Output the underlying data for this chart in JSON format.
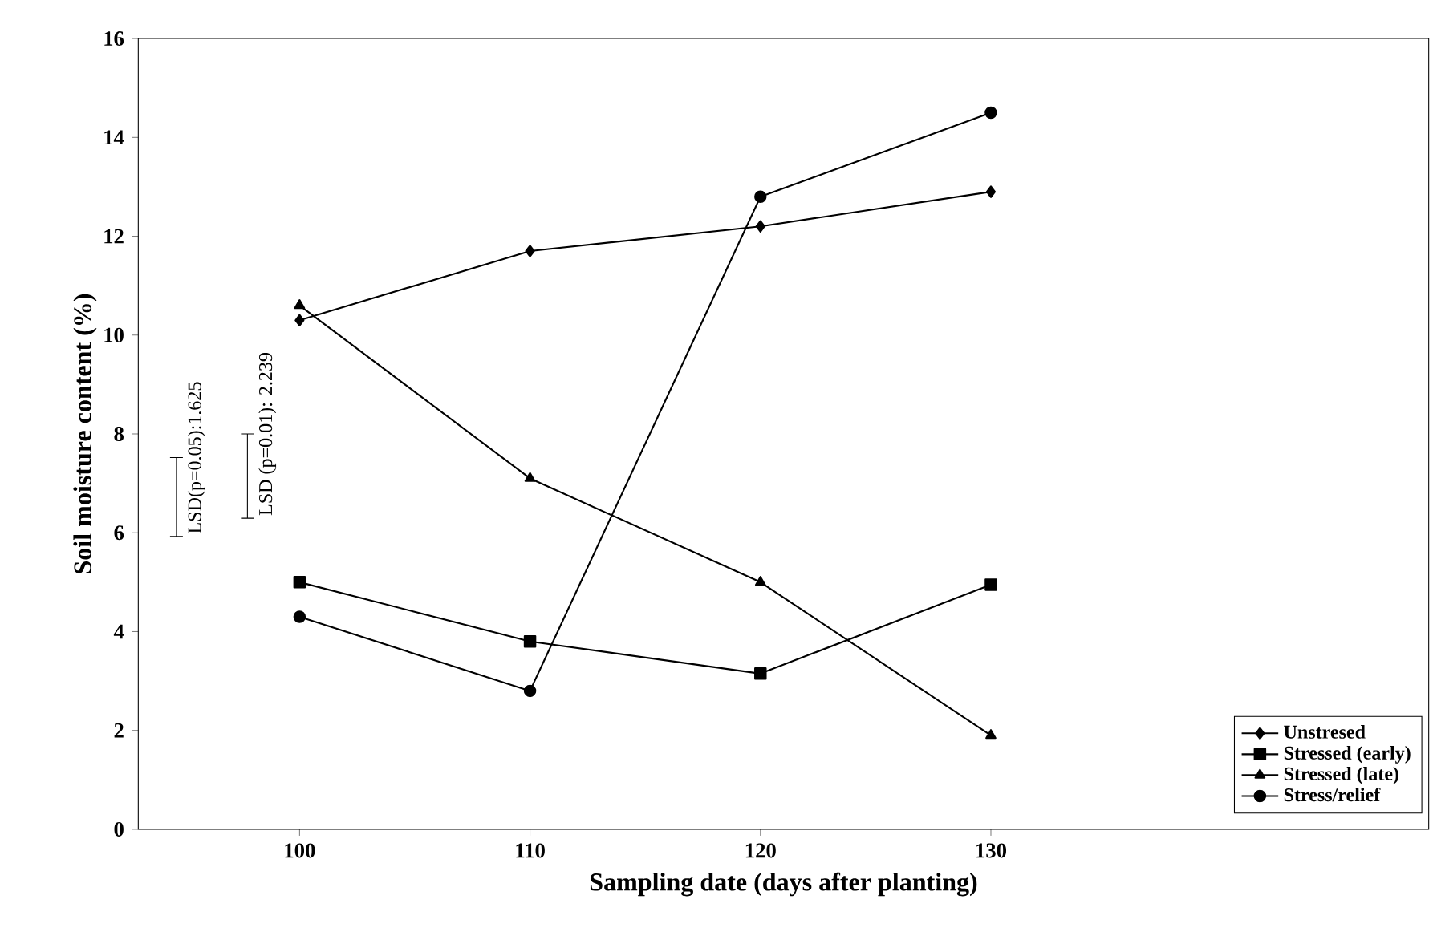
{
  "chart_data": {
    "type": "line",
    "xlabel": "Sampling date (days after planting)",
    "ylabel": "Soil moisture content (%)",
    "x": [
      100,
      110,
      120,
      130
    ],
    "series": [
      {
        "name": "Unstresed",
        "color": "#000000",
        "marker": "diamond",
        "values": [
          10.3,
          11.7,
          12.2,
          12.9
        ]
      },
      {
        "name": "Stressed (early)",
        "color": "#000000",
        "marker": "square",
        "values": [
          5.0,
          3.8,
          3.15,
          4.95
        ]
      },
      {
        "name": "Stressed (late)",
        "color": "#000000",
        "marker": "triangle",
        "values": [
          10.6,
          7.1,
          5.0,
          1.9
        ]
      },
      {
        "name": "Stress/relief",
        "color": "#000000",
        "marker": "circle",
        "values": [
          4.3,
          2.8,
          12.8,
          14.5
        ]
      }
    ],
    "xlim": [
      93,
      149
    ],
    "xticks": [
      100,
      110,
      120,
      130
    ],
    "ylim": [
      0,
      16
    ],
    "yticks": [
      0,
      2,
      4,
      6,
      8,
      10,
      12,
      14,
      16
    ],
    "grid": false,
    "legend": "bottom right",
    "line_style": "solid",
    "annotations": [
      "LSD(p=0.05):1.625",
      "LSD (p=0.01): 2.239"
    ]
  }
}
